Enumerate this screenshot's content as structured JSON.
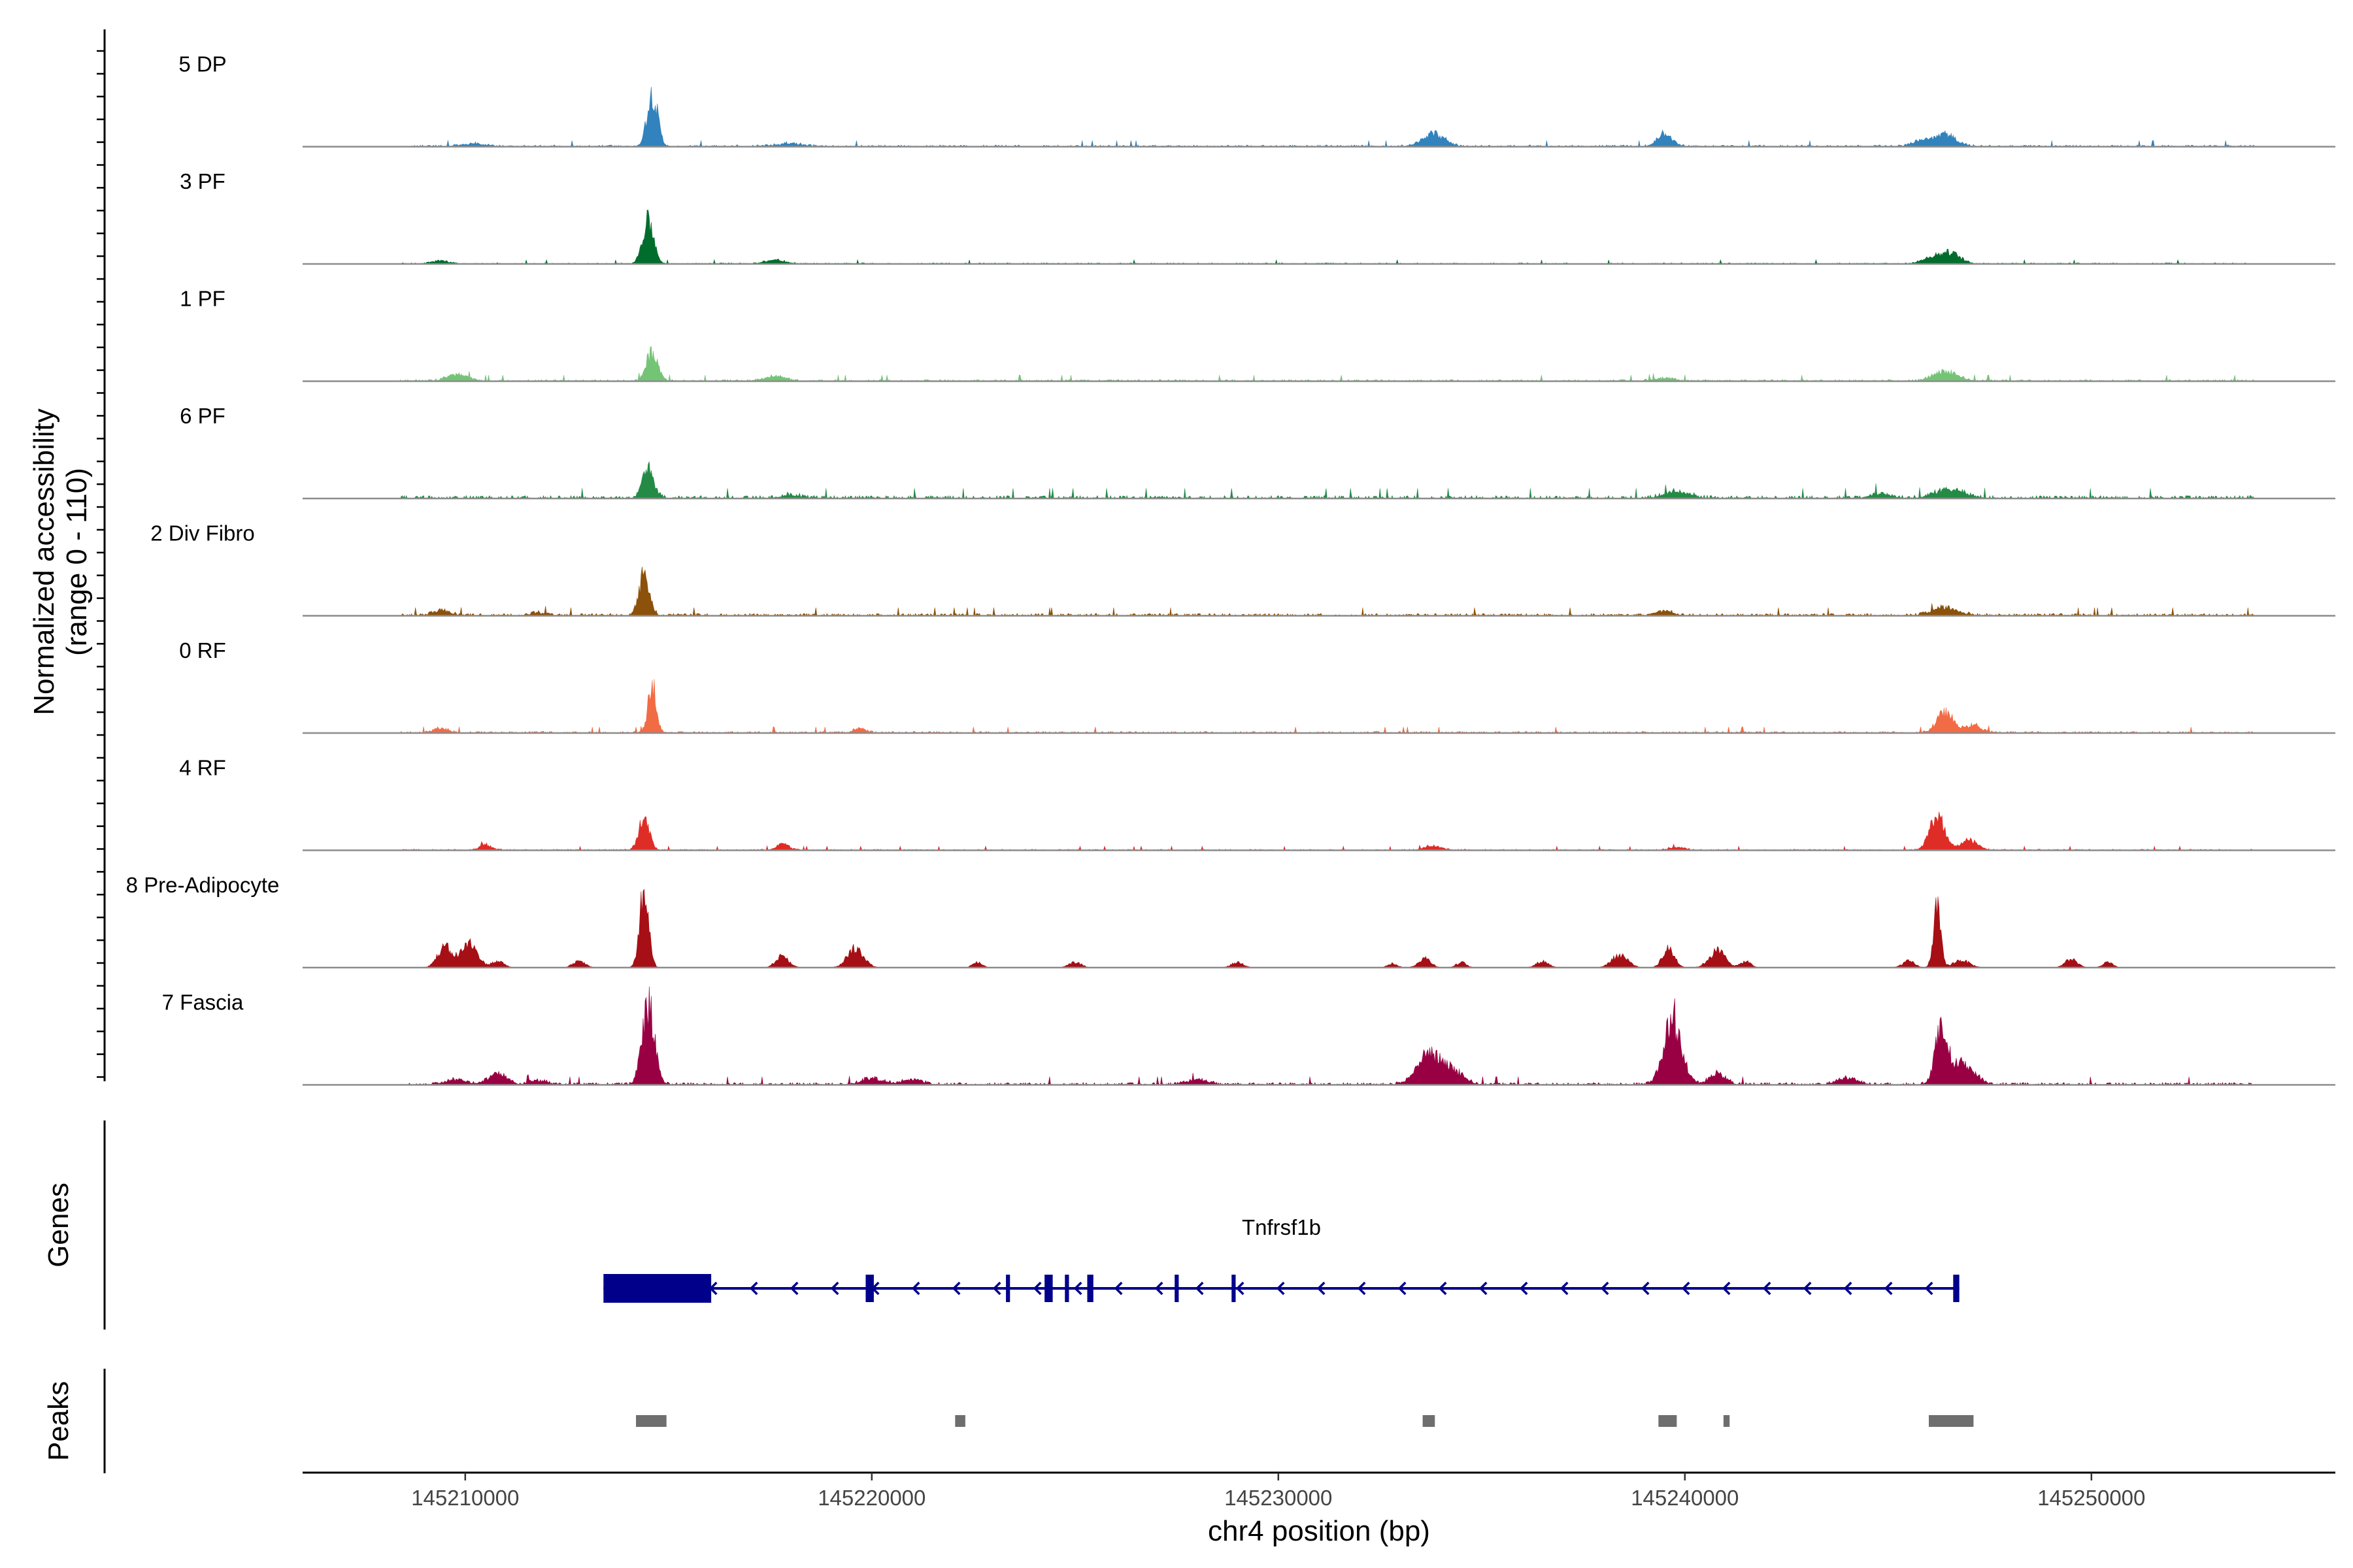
{
  "chart_data": {
    "type": "area",
    "title": "",
    "ylabel_line1": "Normalized accessibility",
    "ylabel_line2": "(range 0 - 110)",
    "y_range": [
      0,
      110
    ],
    "xlabel": "chr4 position (bp)",
    "x_range": [
      145206000,
      145256000
    ],
    "x_ticks": [
      {
        "value": 145210000,
        "label": "145210000"
      },
      {
        "value": 145220000,
        "label": "145220000"
      },
      {
        "value": 145230000,
        "label": "145230000"
      },
      {
        "value": 145240000,
        "label": "145240000"
      },
      {
        "value": 145250000,
        "label": "145250000"
      }
    ],
    "genes_label": "Genes",
    "peaks_label": "Peaks",
    "tracks": [
      {
        "name": "5 DP",
        "color": "#3182BD",
        "baseline": 3,
        "coverage": [
          145208400,
          145254000
        ],
        "peaks": [
          [
            145214600,
            100,
            130
          ],
          [
            145210200,
            5,
            300
          ],
          [
            145218000,
            6,
            300
          ],
          [
            145233800,
            25,
            260
          ],
          [
            145239500,
            26,
            180
          ],
          [
            145246400,
            22,
            280
          ],
          [
            145245800,
            10,
            200
          ]
        ]
      },
      {
        "name": "3 PF",
        "color": "#006D2C",
        "baseline": 2,
        "coverage": [
          145208400,
          145254000
        ],
        "peaks": [
          [
            145214500,
            80,
            140
          ],
          [
            145209400,
            6,
            200
          ],
          [
            145217600,
            7,
            250
          ],
          [
            145246500,
            22,
            250
          ],
          [
            145246000,
            10,
            200
          ]
        ]
      },
      {
        "name": "1 PF",
        "color": "#74C476",
        "baseline": 3,
        "coverage": [
          145208400,
          145254000
        ],
        "peaks": [
          [
            145214600,
            55,
            140
          ],
          [
            145209800,
            12,
            250
          ],
          [
            145217600,
            8,
            250
          ],
          [
            145246400,
            17,
            300
          ],
          [
            145239500,
            5,
            250
          ]
        ]
      },
      {
        "name": "6 PF",
        "color": "#238B45",
        "baseline": 5,
        "coverage": [
          145208400,
          145254000
        ],
        "peaks": [
          [
            145214500,
            55,
            140
          ],
          [
            145239800,
            12,
            300
          ],
          [
            145246500,
            16,
            350
          ],
          [
            145244800,
            8,
            250
          ],
          [
            145218000,
            6,
            250
          ]
        ]
      },
      {
        "name": "2 Div Fibro",
        "color": "#8C510A",
        "baseline": 4,
        "coverage": [
          145208400,
          145254000
        ],
        "peaks": [
          [
            145214400,
            75,
            130
          ],
          [
            145209400,
            10,
            200
          ],
          [
            145239500,
            9,
            200
          ],
          [
            145246400,
            16,
            300
          ],
          [
            145211800,
            5,
            200
          ]
        ]
      },
      {
        "name": "0 RF",
        "color": "#F16B45",
        "baseline": 3,
        "coverage": [
          145208400,
          145254000
        ],
        "peaks": [
          [
            145214600,
            95,
            100
          ],
          [
            145209400,
            9,
            180
          ],
          [
            145219700,
            8,
            150
          ],
          [
            145246400,
            38,
            200
          ],
          [
            145247100,
            14,
            200
          ]
        ]
      },
      {
        "name": "4 RF",
        "color": "#DE2D26",
        "baseline": 2,
        "coverage": [
          145208400,
          145254000
        ],
        "peaks": [
          [
            145214400,
            60,
            130
          ],
          [
            145210500,
            10,
            150
          ],
          [
            145217800,
            12,
            150
          ],
          [
            145233800,
            8,
            200
          ],
          [
            145246200,
            65,
            180
          ],
          [
            145247000,
            20,
            200
          ],
          [
            145239800,
            5,
            200
          ]
        ]
      },
      {
        "name": "8 Pre-Adipocyte",
        "color": "#A50F15",
        "baseline": 0,
        "coverage": [
          145208400,
          145254000
        ],
        "peaks": [
          [
            145214400,
            145,
            110
          ],
          [
            145209500,
            38,
            180
          ],
          [
            145210100,
            45,
            200
          ],
          [
            145210800,
            12,
            150
          ],
          [
            145212800,
            12,
            150
          ],
          [
            145217800,
            22,
            160
          ],
          [
            145219600,
            38,
            200
          ],
          [
            145222600,
            10,
            120
          ],
          [
            145225000,
            10,
            150
          ],
          [
            145229000,
            10,
            150
          ],
          [
            145232800,
            8,
            120
          ],
          [
            145233600,
            18,
            150
          ],
          [
            145234500,
            10,
            120
          ],
          [
            145236500,
            12,
            150
          ],
          [
            145238400,
            24,
            200
          ],
          [
            145239600,
            35,
            150
          ],
          [
            145240800,
            32,
            200
          ],
          [
            145241500,
            12,
            120
          ],
          [
            145245500,
            12,
            150
          ],
          [
            145246200,
            110,
            90
          ],
          [
            145246800,
            14,
            200
          ],
          [
            145249500,
            16,
            150
          ],
          [
            145250400,
            10,
            120
          ]
        ]
      },
      {
        "name": "7 Fascia",
        "color": "#980043",
        "baseline": 4,
        "coverage": [
          145208400,
          145254000
        ],
        "peaks": [
          [
            145214500,
            150,
            150
          ],
          [
            145209800,
            10,
            250
          ],
          [
            145210800,
            20,
            220
          ],
          [
            145211800,
            8,
            200
          ],
          [
            145233700,
            58,
            280
          ],
          [
            145234300,
            24,
            250
          ],
          [
            145239700,
            120,
            220
          ],
          [
            145240800,
            20,
            200
          ],
          [
            145246300,
            95,
            150
          ],
          [
            145246800,
            40,
            300
          ],
          [
            145244000,
            12,
            250
          ],
          [
            145220000,
            12,
            250
          ],
          [
            145221000,
            10,
            250
          ],
          [
            145228000,
            9,
            250
          ]
        ]
      }
    ],
    "gene": {
      "name": "Tnfrsf1b",
      "strand": "-",
      "start": 145213400,
      "end": 145246750,
      "exons": [
        {
          "start": 145213400,
          "end": 145216050,
          "thick": true
        },
        {
          "start": 145219850,
          "end": 145220050,
          "thick": false
        },
        {
          "start": 145223300,
          "end": 145223400,
          "thick": false
        },
        {
          "start": 145224250,
          "end": 145224450,
          "thick": false
        },
        {
          "start": 145224750,
          "end": 145224850,
          "thick": false
        },
        {
          "start": 145225300,
          "end": 145225450,
          "thick": false
        },
        {
          "start": 145227450,
          "end": 145227550,
          "thick": false
        },
        {
          "start": 145228850,
          "end": 145228950,
          "thick": false
        },
        {
          "start": 145246600,
          "end": 145246750,
          "thick": false
        }
      ],
      "color": "#00008B"
    },
    "peak_regions": [
      [
        145214200,
        145214950
      ],
      [
        145222050,
        145222300
      ],
      [
        145233550,
        145233850
      ],
      [
        145239350,
        145239800
      ],
      [
        145240950,
        145241100
      ],
      [
        145246000,
        145247100
      ]
    ],
    "peak_color": "#6E6E6E"
  }
}
